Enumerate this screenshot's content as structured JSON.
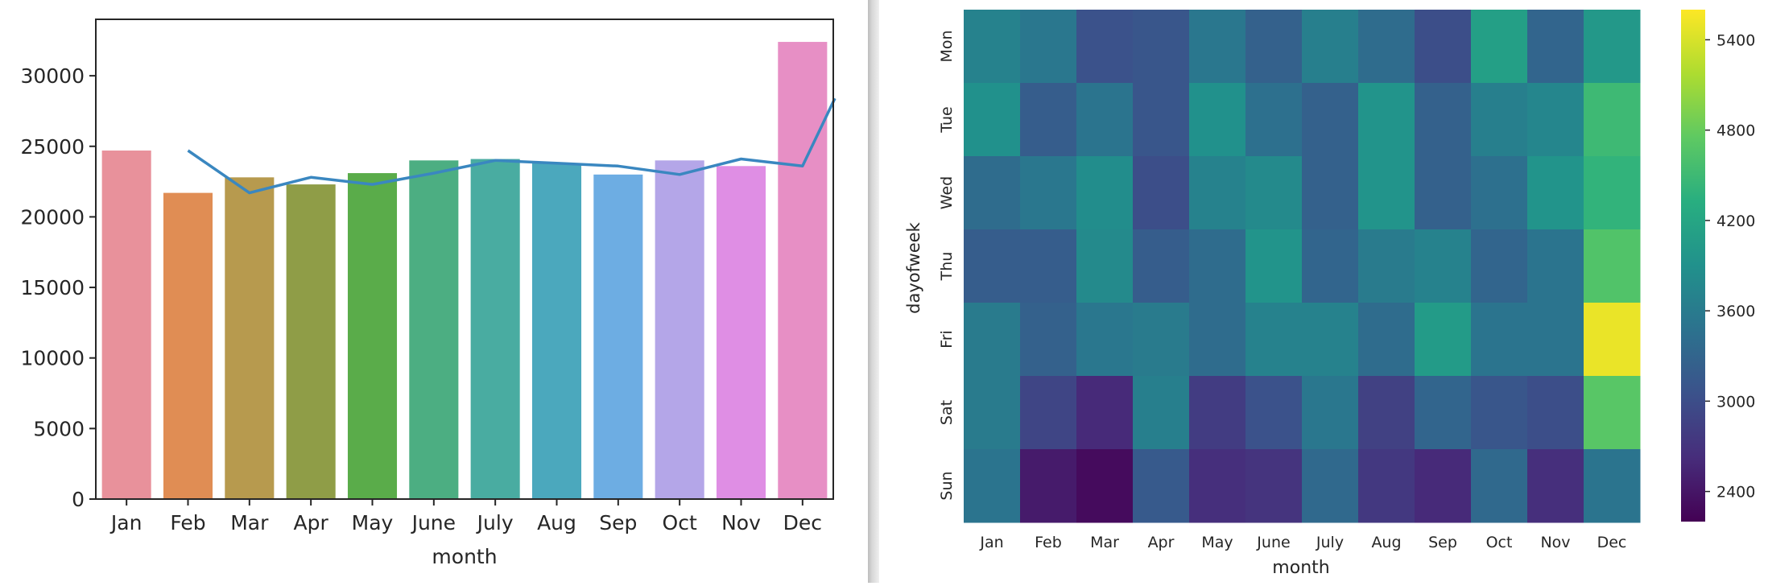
{
  "chart_data": [
    {
      "type": "bar",
      "xlabel": "month",
      "ylabel": "",
      "categories": [
        "Jan",
        "Feb",
        "Mar",
        "Apr",
        "May",
        "June",
        "July",
        "Aug",
        "Sep",
        "Oct",
        "Nov",
        "Dec"
      ],
      "values": [
        24700,
        21700,
        22800,
        22300,
        23100,
        24000,
        24100,
        23800,
        23000,
        24000,
        23600,
        32400
      ],
      "bar_colors": [
        "#e8919b",
        "#e08d54",
        "#b79a4e",
        "#8f9d47",
        "#5aac4a",
        "#4cae82",
        "#49aca1",
        "#4ba8bd",
        "#6dade3",
        "#b4a6e8",
        "#df8ee4",
        "#e78fc5"
      ],
      "ylim": [
        0,
        34000
      ],
      "yticks": [
        0,
        5000,
        10000,
        15000,
        20000,
        25000,
        30000
      ],
      "overlay_line": {
        "type": "line",
        "color": "#3a87c0",
        "x_index": [
          1,
          2,
          3,
          4,
          5,
          6,
          7,
          8,
          9,
          10,
          11,
          11.55
        ],
        "values": [
          24700,
          21700,
          22800,
          22300,
          23100,
          24000,
          23800,
          23600,
          23000,
          24100,
          23600,
          28400
        ]
      },
      "grid": false,
      "legend": "none"
    },
    {
      "type": "heatmap",
      "xlabel": "month",
      "ylabel": "dayofweek",
      "x_categories": [
        "Jan",
        "Feb",
        "Mar",
        "Apr",
        "May",
        "June",
        "July",
        "Aug",
        "Sep",
        "Oct",
        "Nov",
        "Dec"
      ],
      "y_categories": [
        "Mon",
        "Tue",
        "Wed",
        "Thu",
        "Fri",
        "Sat",
        "Sun"
      ],
      "values": [
        [
          3700,
          3550,
          3050,
          3100,
          3550,
          3250,
          3650,
          3400,
          3000,
          4100,
          3300,
          4000
        ],
        [
          3900,
          3200,
          3500,
          3100,
          3900,
          3450,
          3250,
          3950,
          3250,
          3650,
          3750,
          4500
        ],
        [
          3400,
          3550,
          3850,
          3000,
          3700,
          3800,
          3250,
          3950,
          3250,
          3450,
          3950,
          4400
        ],
        [
          3200,
          3200,
          3800,
          3200,
          3400,
          3950,
          3300,
          3600,
          3700,
          3300,
          3500,
          4650
        ],
        [
          3600,
          3250,
          3550,
          3600,
          3400,
          3700,
          3700,
          3400,
          4050,
          3500,
          3500,
          5500
        ],
        [
          3600,
          2900,
          2600,
          3650,
          2800,
          3050,
          3550,
          2850,
          3300,
          3100,
          3000,
          4700
        ],
        [
          3500,
          2450,
          2300,
          3150,
          2650,
          2700,
          3350,
          2750,
          2600,
          3350,
          2650,
          3500
        ]
      ],
      "colorbar": {
        "vmin": 2200,
        "vmax": 5600,
        "ticks": [
          2400,
          3000,
          3600,
          4200,
          4800,
          5400
        ],
        "colormap": "viridis"
      }
    }
  ]
}
